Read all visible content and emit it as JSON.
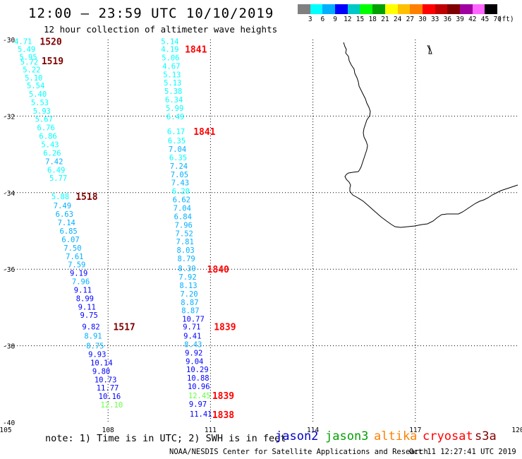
{
  "title": "12:00 – 23:59 UTC 10/10/2019",
  "subtitle": "12 hour collection of altimeter wave heights",
  "legend": {
    "colors": [
      "#808080",
      "#00ffff",
      "#00b0ff",
      "#0000ff",
      "#00c8c8",
      "#00ff00",
      "#00a000",
      "#ffff00",
      "#ffc000",
      "#ff8000",
      "#ff0000",
      "#c00000",
      "#800000",
      "#a000a0",
      "#ff66ff",
      "#000000"
    ],
    "labels": [
      "3",
      "6",
      "9",
      "12",
      "15",
      "18",
      "21",
      "24",
      "27",
      "30",
      "33",
      "36",
      "39",
      "42",
      "45",
      "70",
      "(ft)"
    ]
  },
  "axes": {
    "lon_ticks": [
      "105",
      "108",
      "111",
      "114",
      "117",
      "120"
    ],
    "lat_ticks": [
      "-30",
      "-32",
      "-34",
      "-36",
      "-38",
      "-40"
    ]
  },
  "tracks": [
    {
      "label_color": "#800000",
      "labels": [
        {
          "text": "1520",
          "lat": -30.05,
          "lon": 106.0
        },
        {
          "text": "1519",
          "lat": -30.55,
          "lon": 106.05
        },
        {
          "text": "1518",
          "lat": -34.1,
          "lon": 107.05
        },
        {
          "text": "1517",
          "lat": -37.5,
          "lon": 108.15
        }
      ],
      "points": [
        {
          "v": "4.71",
          "lat": -30.05,
          "lon": 105.25,
          "c": "#00ffff"
        },
        {
          "v": "5.49",
          "lat": -30.25,
          "lon": 105.35,
          "c": "#00ffff"
        },
        {
          "v": "5.95",
          "lat": -30.45,
          "lon": 105.4,
          "c": "#00ffff"
        },
        {
          "v": "5.72",
          "lat": -30.58,
          "lon": 105.43,
          "c": "#00ffff"
        },
        {
          "v": "5.22",
          "lat": -30.78,
          "lon": 105.5,
          "c": "#00ffff"
        },
        {
          "v": "5.10",
          "lat": -31.0,
          "lon": 105.56,
          "c": "#00ffff"
        },
        {
          "v": "5.54",
          "lat": -31.2,
          "lon": 105.62,
          "c": "#00ffff"
        },
        {
          "v": "5.40",
          "lat": -31.42,
          "lon": 105.68,
          "c": "#00ffff"
        },
        {
          "v": "5.53",
          "lat": -31.64,
          "lon": 105.74,
          "c": "#00ffff"
        },
        {
          "v": "5.93",
          "lat": -31.86,
          "lon": 105.8,
          "c": "#00ffff"
        },
        {
          "v": "5.67",
          "lat": -32.08,
          "lon": 105.86,
          "c": "#00ffff"
        },
        {
          "v": "6.76",
          "lat": -32.3,
          "lon": 105.92,
          "c": "#00ffff"
        },
        {
          "v": "6.86",
          "lat": -32.52,
          "lon": 105.98,
          "c": "#00ffff"
        },
        {
          "v": "5.43",
          "lat": -32.74,
          "lon": 106.04,
          "c": "#00ffff"
        },
        {
          "v": "6.26",
          "lat": -32.96,
          "lon": 106.1,
          "c": "#00ffff"
        },
        {
          "v": "7.42",
          "lat": -33.18,
          "lon": 106.16,
          "c": "#00b0ff"
        },
        {
          "v": "6.49",
          "lat": -33.4,
          "lon": 106.22,
          "c": "#00ffff"
        },
        {
          "v": "5.77",
          "lat": -33.62,
          "lon": 106.28,
          "c": "#00ffff"
        },
        {
          "v": "5.88",
          "lat": -34.1,
          "lon": 106.34,
          "c": "#00ffff"
        },
        {
          "v": "7.49",
          "lat": -34.34,
          "lon": 106.4,
          "c": "#00b0ff"
        },
        {
          "v": "6.63",
          "lat": -34.56,
          "lon": 106.46,
          "c": "#00b0ff"
        },
        {
          "v": "7.14",
          "lat": -34.78,
          "lon": 106.52,
          "c": "#00b0ff"
        },
        {
          "v": "6.85",
          "lat": -35.0,
          "lon": 106.58,
          "c": "#00b0ff"
        },
        {
          "v": "6.07",
          "lat": -35.22,
          "lon": 106.64,
          "c": "#00b0ff"
        },
        {
          "v": "7.50",
          "lat": -35.44,
          "lon": 106.7,
          "c": "#00b0ff"
        },
        {
          "v": "7.61",
          "lat": -35.66,
          "lon": 106.76,
          "c": "#00b0ff"
        },
        {
          "v": "7.59",
          "lat": -35.88,
          "lon": 106.82,
          "c": "#00b0ff"
        },
        {
          "v": "9.19",
          "lat": -36.1,
          "lon": 106.88,
          "c": "#0000ff"
        },
        {
          "v": "7.96",
          "lat": -36.32,
          "lon": 106.94,
          "c": "#00b0ff"
        },
        {
          "v": "9.11",
          "lat": -36.54,
          "lon": 107.0,
          "c": "#0000ff"
        },
        {
          "v": "8.99",
          "lat": -36.76,
          "lon": 107.06,
          "c": "#0000ff"
        },
        {
          "v": "9.11",
          "lat": -36.98,
          "lon": 107.12,
          "c": "#0000ff"
        },
        {
          "v": "9.75",
          "lat": -37.2,
          "lon": 107.18,
          "c": "#0000ff"
        },
        {
          "v": "9.82",
          "lat": -37.5,
          "lon": 107.24,
          "c": "#0000ff"
        },
        {
          "v": "8.91",
          "lat": -37.74,
          "lon": 107.3,
          "c": "#00b0ff"
        },
        {
          "v": "8.75",
          "lat": -38.0,
          "lon": 107.36,
          "c": "#00b0ff"
        },
        {
          "v": "9.93",
          "lat": -38.22,
          "lon": 107.42,
          "c": "#0000ff"
        },
        {
          "v": "10.14",
          "lat": -38.44,
          "lon": 107.48,
          "c": "#0000ff"
        },
        {
          "v": "9.80",
          "lat": -38.66,
          "lon": 107.54,
          "c": "#0000ff"
        },
        {
          "v": "10.73",
          "lat": -38.88,
          "lon": 107.6,
          "c": "#0000ff"
        },
        {
          "v": "11.77",
          "lat": -39.1,
          "lon": 107.66,
          "c": "#0000ff"
        },
        {
          "v": "10.16",
          "lat": -39.32,
          "lon": 107.72,
          "c": "#0000ff"
        },
        {
          "v": "12.10",
          "lat": -39.54,
          "lon": 107.78,
          "c": "#66ff44"
        }
      ]
    },
    {
      "label_color": "#ff0000",
      "labels": [
        {
          "text": "1841",
          "lat": -30.25,
          "lon": 110.25
        },
        {
          "text": "1841",
          "lat": -32.4,
          "lon": 110.5
        },
        {
          "text": "1840",
          "lat": -36.0,
          "lon": 110.9
        },
        {
          "text": "1839",
          "lat": -37.5,
          "lon": 111.1
        },
        {
          "text": "1839",
          "lat": -39.3,
          "lon": 111.05
        },
        {
          "text": "1838",
          "lat": -39.8,
          "lon": 111.05
        }
      ],
      "points": [
        {
          "v": "5.14",
          "lat": -30.05,
          "lon": 109.55,
          "c": "#00ffff"
        },
        {
          "v": "4.19",
          "lat": -30.25,
          "lon": 109.55,
          "c": "#00ffff"
        },
        {
          "v": "5.06",
          "lat": -30.47,
          "lon": 109.57,
          "c": "#00ffff"
        },
        {
          "v": "4.67",
          "lat": -30.69,
          "lon": 109.59,
          "c": "#00ffff"
        },
        {
          "v": "5.13",
          "lat": -30.91,
          "lon": 109.61,
          "c": "#00ffff"
        },
        {
          "v": "5.13",
          "lat": -31.13,
          "lon": 109.63,
          "c": "#00ffff"
        },
        {
          "v": "5.38",
          "lat": -31.35,
          "lon": 109.65,
          "c": "#00ffff"
        },
        {
          "v": "6.34",
          "lat": -31.57,
          "lon": 109.67,
          "c": "#00ffff"
        },
        {
          "v": "5.99",
          "lat": -31.79,
          "lon": 109.69,
          "c": "#00ffff"
        },
        {
          "v": "6.49",
          "lat": -32.01,
          "lon": 109.71,
          "c": "#00ffff"
        },
        {
          "v": "6.17",
          "lat": -32.4,
          "lon": 109.73,
          "c": "#00ffff"
        },
        {
          "v": "6.35",
          "lat": -32.64,
          "lon": 109.75,
          "c": "#00ffff"
        },
        {
          "v": "7.04",
          "lat": -32.86,
          "lon": 109.77,
          "c": "#00b0ff"
        },
        {
          "v": "6.35",
          "lat": -33.08,
          "lon": 109.79,
          "c": "#00ffff"
        },
        {
          "v": "7.24",
          "lat": -33.3,
          "lon": 109.81,
          "c": "#00b0ff"
        },
        {
          "v": "7.05",
          "lat": -33.52,
          "lon": 109.83,
          "c": "#00b0ff"
        },
        {
          "v": "7.43",
          "lat": -33.74,
          "lon": 109.85,
          "c": "#00b0ff"
        },
        {
          "v": "6.20",
          "lat": -33.96,
          "lon": 109.87,
          "c": "#00ffff"
        },
        {
          "v": "6.62",
          "lat": -34.18,
          "lon": 109.89,
          "c": "#00b0ff"
        },
        {
          "v": "7.04",
          "lat": -34.4,
          "lon": 109.91,
          "c": "#00b0ff"
        },
        {
          "v": "6.84",
          "lat": -34.62,
          "lon": 109.93,
          "c": "#00b0ff"
        },
        {
          "v": "7.96",
          "lat": -34.84,
          "lon": 109.95,
          "c": "#00b0ff"
        },
        {
          "v": "7.52",
          "lat": -35.06,
          "lon": 109.97,
          "c": "#00b0ff"
        },
        {
          "v": "7.81",
          "lat": -35.28,
          "lon": 109.99,
          "c": "#00b0ff"
        },
        {
          "v": "8.03",
          "lat": -35.5,
          "lon": 110.01,
          "c": "#00b0ff"
        },
        {
          "v": "8.79",
          "lat": -35.72,
          "lon": 110.03,
          "c": "#00b0ff"
        },
        {
          "v": "8.39",
          "lat": -35.98,
          "lon": 110.05,
          "c": "#00b0ff"
        },
        {
          "v": "7.92",
          "lat": -36.2,
          "lon": 110.07,
          "c": "#00b0ff"
        },
        {
          "v": "8.13",
          "lat": -36.42,
          "lon": 110.09,
          "c": "#00b0ff"
        },
        {
          "v": "7.20",
          "lat": -36.64,
          "lon": 110.11,
          "c": "#00b0ff"
        },
        {
          "v": "8.87",
          "lat": -36.86,
          "lon": 110.13,
          "c": "#00b0ff"
        },
        {
          "v": "8.87",
          "lat": -37.08,
          "lon": 110.15,
          "c": "#00b0ff"
        },
        {
          "v": "10.77",
          "lat": -37.3,
          "lon": 110.17,
          "c": "#0000ff"
        },
        {
          "v": "9.71",
          "lat": -37.5,
          "lon": 110.19,
          "c": "#0000ff"
        },
        {
          "v": "9.41",
          "lat": -37.74,
          "lon": 110.21,
          "c": "#0000ff"
        },
        {
          "v": "8.43",
          "lat": -37.96,
          "lon": 110.23,
          "c": "#00b0ff"
        },
        {
          "v": "9.92",
          "lat": -38.18,
          "lon": 110.25,
          "c": "#0000ff"
        },
        {
          "v": "9.04",
          "lat": -38.4,
          "lon": 110.27,
          "c": "#0000ff"
        },
        {
          "v": "10.29",
          "lat": -38.62,
          "lon": 110.29,
          "c": "#0000ff"
        },
        {
          "v": "10.88",
          "lat": -38.84,
          "lon": 110.31,
          "c": "#0000ff"
        },
        {
          "v": "10.96",
          "lat": -39.06,
          "lon": 110.33,
          "c": "#0000ff"
        },
        {
          "v": "12.45",
          "lat": -39.3,
          "lon": 110.35,
          "c": "#66ff44"
        },
        {
          "v": "9.97",
          "lat": -39.52,
          "lon": 110.37,
          "c": "#0000ff"
        },
        {
          "v": "11.41",
          "lat": -39.78,
          "lon": 110.39,
          "c": "#0000ff"
        }
      ]
    }
  ],
  "note": "note: 1) Time is in UTC; 2) SWH is in feet",
  "satellites": [
    {
      "name": "jason2",
      "color": "#0000cc"
    },
    {
      "name": "jason3",
      "color": "#00a000"
    },
    {
      "name": "altika",
      "color": "#ff8000"
    },
    {
      "name": "cryosat",
      "color": "#ff0000"
    },
    {
      "name": "s3a",
      "color": "#800000"
    }
  ],
  "credit": "NOAA/NESDIS Center for Satellite Applications and Research",
  "timestamp": "Oct 11 12:27:41 UTC 2019"
}
